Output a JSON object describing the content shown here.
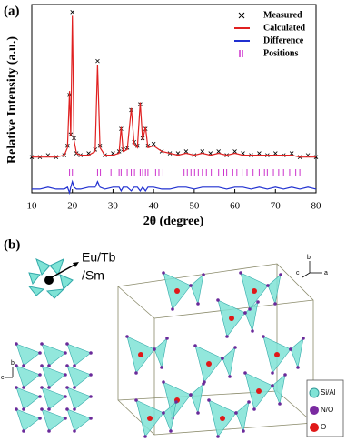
{
  "chart_data": {
    "type": "line",
    "panel": "(a)",
    "xlabel": "2θ (degree)",
    "ylabel": "Relative Intensity (a.u.)",
    "xlim": [
      10,
      80
    ],
    "xticks": [
      10,
      20,
      30,
      40,
      50,
      60,
      70,
      80
    ],
    "ylim": [
      0,
      100
    ],
    "x": [
      10,
      12,
      14,
      16,
      18,
      18.8,
      19.3,
      19.6,
      20.0,
      20.4,
      21,
      22,
      24,
      25.6,
      26.2,
      26.8,
      28,
      30,
      31.5,
      32,
      32.5,
      33.5,
      34.5,
      35.2,
      36,
      36.7,
      37.3,
      38,
      38.6,
      40,
      42,
      44,
      46,
      48,
      50,
      52,
      54,
      56,
      58,
      60,
      62,
      64,
      66,
      68,
      70,
      72,
      74,
      76,
      78,
      80
    ],
    "series": [
      {
        "name": "Measured",
        "color": "#000000",
        "marker": "x",
        "values": [
          19,
          19,
          20,
          19,
          20,
          25,
          52,
          31,
          96,
          29,
          21,
          20,
          21,
          23,
          70,
          25,
          20,
          21,
          22,
          34,
          23,
          24,
          44,
          27,
          25,
          47,
          29,
          34,
          25,
          26,
          22,
          21,
          21,
          22,
          20,
          22,
          21,
          22,
          20,
          22,
          21,
          20,
          21,
          20,
          21,
          20,
          21,
          19,
          20,
          19
        ]
      },
      {
        "name": "Calculated",
        "color": "#e02020",
        "values": [
          19,
          19,
          19,
          19,
          20,
          24,
          54,
          30,
          94,
          28,
          21,
          20,
          20,
          22,
          68,
          24,
          20,
          20,
          21,
          35,
          22,
          23,
          45,
          26,
          24,
          48,
          28,
          35,
          24,
          25,
          22,
          21,
          20,
          21,
          20,
          21,
          20,
          21,
          20,
          21,
          20,
          20,
          20,
          20,
          20,
          20,
          20,
          19,
          19,
          19
        ]
      },
      {
        "name": "Difference",
        "color": "#2030d0",
        "values": [
          2,
          2,
          3,
          2,
          2,
          3,
          0,
          3,
          6,
          3,
          2,
          2,
          3,
          3,
          6,
          3,
          2,
          3,
          3,
          1,
          3,
          3,
          1,
          3,
          3,
          1,
          3,
          1,
          3,
          3,
          2,
          2,
          3,
          3,
          2,
          3,
          3,
          3,
          2,
          3,
          3,
          2,
          3,
          2,
          3,
          2,
          3,
          2,
          3,
          2
        ]
      }
    ],
    "positions": {
      "name": "Positions",
      "color": "#cc33cc",
      "x": [
        19.3,
        20.0,
        26.2,
        26.9,
        29.5,
        31.5,
        32.0,
        33.5,
        34.5,
        35.3,
        36.7,
        37.3,
        38.0,
        38.6,
        40.5,
        41.3,
        42.3,
        47.5,
        48.3,
        49.2,
        50.1,
        51.0,
        52.0,
        53.0,
        54.2,
        56.0,
        57.3,
        58.0,
        59.5,
        60.5,
        61.8,
        63.0,
        64.5,
        66.0,
        67.3,
        68.0,
        69.5,
        70.8,
        72.0,
        73.5,
        75.0,
        76.0
      ]
    }
  },
  "structure": {
    "panel": "(b)",
    "site_label": [
      "Eu/Tb",
      "/Sm"
    ],
    "axes_right": [
      "b",
      "c",
      "a"
    ],
    "axes_left": [
      "b",
      "c"
    ],
    "legend": [
      "Si/Al",
      "N/O",
      "O"
    ]
  }
}
